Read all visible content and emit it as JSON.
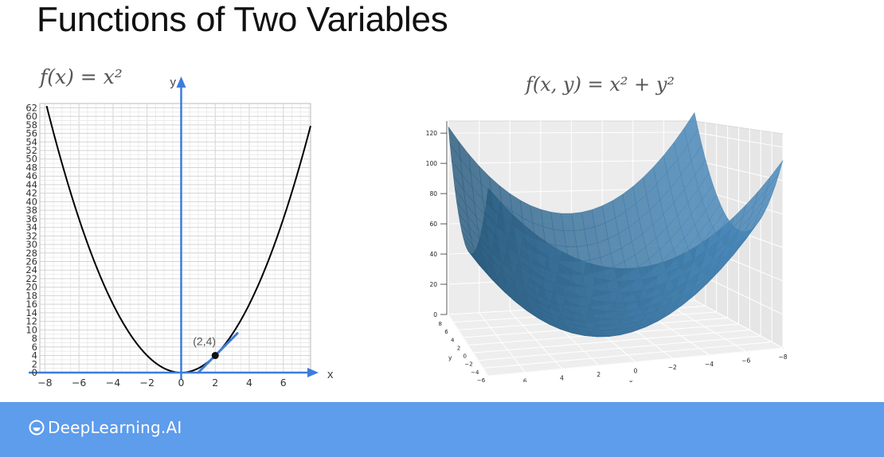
{
  "slide": {
    "title": "Functions of Two Variables",
    "formula_1d": "f(x) = x²",
    "formula_2d": "f(x, y) = x² + y²"
  },
  "brand": {
    "logo_text": "DeepLearning.AI",
    "footer_color": "#5e9cec"
  },
  "colors": {
    "axis": "#3b7ddd",
    "curve": "#000000",
    "surface": "#3f7fb0"
  },
  "chart_data": [
    {
      "type": "line",
      "function": "x^2",
      "x": [
        -8,
        -7,
        -6,
        -5,
        -4,
        -3,
        -2,
        -1,
        0,
        1,
        2,
        3,
        4,
        5,
        6,
        7,
        8
      ],
      "y": [
        64,
        49,
        36,
        25,
        16,
        9,
        4,
        1,
        0,
        1,
        4,
        9,
        16,
        25,
        36,
        49,
        64
      ],
      "xlabel": "x",
      "ylabel": "y",
      "xticks": [
        "−8",
        "−6",
        "−4",
        "−2",
        "0",
        "2",
        "4",
        "6"
      ],
      "yticks": [
        "0",
        "2",
        "4",
        "6",
        "8",
        "10",
        "12",
        "14",
        "16",
        "18",
        "20",
        "22",
        "24",
        "26",
        "28",
        "30",
        "32",
        "34",
        "36",
        "38",
        "40",
        "42",
        "44",
        "46",
        "48",
        "50",
        "52",
        "54",
        "56",
        "58",
        "60",
        "62"
      ],
      "point": {
        "x": 2,
        "y": 4,
        "label": "(2,4)"
      },
      "tangent": {
        "slope": 4,
        "x_range": [
          1,
          3.3
        ]
      },
      "xlim": [
        -8.3,
        7.6
      ],
      "ylim": [
        0,
        63
      ],
      "grid": true
    },
    {
      "type": "surface",
      "function": "x^2 + y^2",
      "x": [
        -8,
        -6,
        -4,
        -2,
        0,
        2,
        4,
        6,
        8
      ],
      "y": [
        -8,
        -6,
        -4,
        -2,
        0,
        2,
        4,
        6,
        8
      ],
      "zticks": [
        "0",
        "20",
        "40",
        "60",
        "80",
        "100",
        "120"
      ],
      "xticks": [
        "8",
        "6",
        "4",
        "2",
        "0",
        "−2",
        "−4",
        "−6",
        "−8"
      ],
      "yticks": [
        "8",
        "6",
        "4",
        "2",
        "0",
        "−2",
        "−4",
        "−6",
        "−8"
      ],
      "xlabel": "x",
      "ylabel": "y",
      "zlim": [
        0,
        128
      ],
      "grid": true
    }
  ]
}
